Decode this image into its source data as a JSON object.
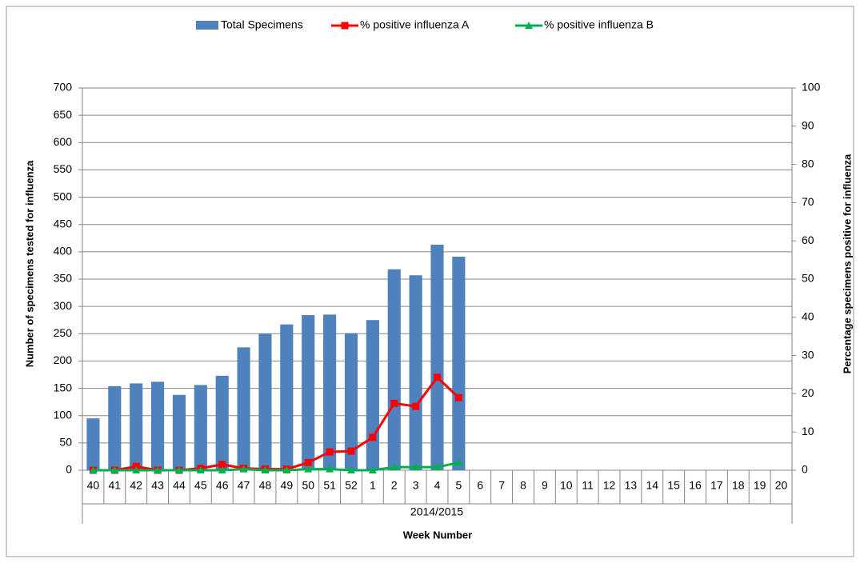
{
  "chart_data": {
    "type": "bar_line",
    "categories": [
      "40",
      "41",
      "42",
      "43",
      "44",
      "45",
      "46",
      "47",
      "48",
      "49",
      "50",
      "51",
      "52",
      "1",
      "2",
      "3",
      "4",
      "5",
      "6",
      "7",
      "8",
      "9",
      "10",
      "11",
      "12",
      "13",
      "14",
      "15",
      "16",
      "17",
      "18",
      "19",
      "20"
    ],
    "x_group_label": "2014/2015",
    "x_label": "Week Number",
    "y_label": "Number of specimens tested for influenza",
    "y2_label": "Percentage specimens positive for influenza",
    "series": [
      {
        "name": "Total Specimens",
        "type": "bar",
        "color": "#4f81bd",
        "values": [
          95,
          154,
          159,
          162,
          138,
          156,
          173,
          225,
          250,
          267,
          284,
          285,
          251,
          275,
          368,
          357,
          413,
          391,
          null,
          null,
          null,
          null,
          null,
          null,
          null,
          null,
          null,
          null,
          null,
          null,
          null,
          null,
          null
        ]
      },
      {
        "name": "% positive influenza A",
        "type": "line",
        "axis": "y2",
        "color": "#ff0000",
        "marker": "square",
        "values": [
          0,
          0,
          1,
          0,
          0,
          0.5,
          1.5,
          0.5,
          0.3,
          0.3,
          2,
          4.8,
          5,
          8.6,
          17.5,
          16.7,
          24.3,
          19,
          null,
          null,
          null,
          null,
          null,
          null,
          null,
          null,
          null,
          null,
          null,
          null,
          null,
          null,
          null
        ]
      },
      {
        "name": "% positive influenza B",
        "type": "line",
        "axis": "y2",
        "color": "#00b050",
        "marker": "triangle",
        "values": [
          0,
          0,
          0,
          0,
          0,
          0,
          0,
          0.3,
          0,
          0,
          0.3,
          0.3,
          0,
          0,
          0.8,
          0.8,
          0.8,
          2,
          null,
          null,
          null,
          null,
          null,
          null,
          null,
          null,
          null,
          null,
          null,
          null,
          null,
          null,
          null
        ]
      }
    ],
    "ylim": [
      0,
      700
    ],
    "yticks": [
      0,
      50,
      100,
      150,
      200,
      250,
      300,
      350,
      400,
      450,
      500,
      550,
      600,
      650,
      700
    ],
    "y2lim": [
      0,
      100
    ],
    "y2ticks": [
      0,
      10,
      20,
      30,
      40,
      50,
      60,
      70,
      80,
      90,
      100
    ],
    "grid": true,
    "legend": "top"
  }
}
